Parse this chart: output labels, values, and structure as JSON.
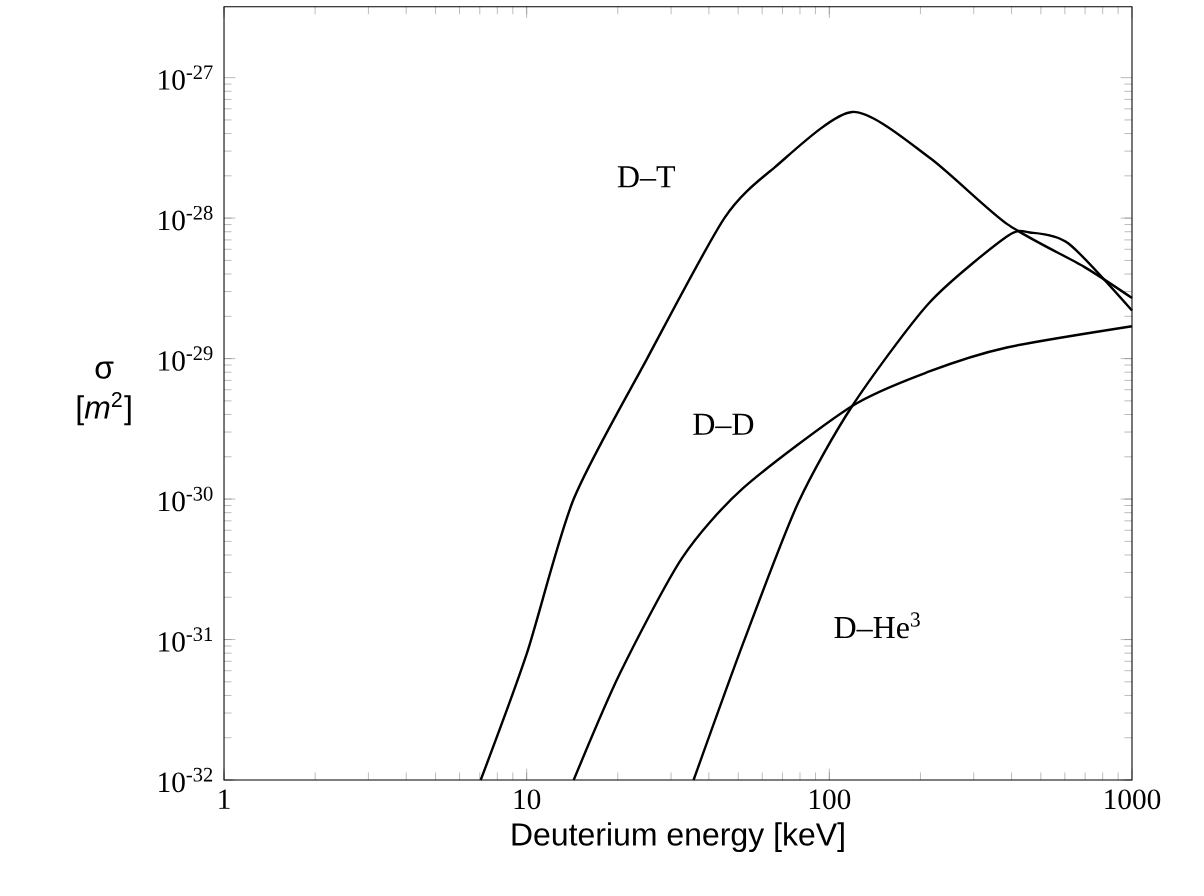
{
  "chart_data": {
    "type": "line",
    "xlabel": "Deuterium energy [keV]",
    "ylabel": "σ [*m*$^{2}$]",
    "log": "xy",
    "marker": "none",
    "line_style": "solid",
    "xlim": [
      1,
      1000
    ],
    "xticks": [
      1,
      10,
      100,
      1000
    ],
    "ylim": [
      1e-32,
      3.2e-27
    ],
    "yticks": [
      {
        "value": 1e-32,
        "label": "10$^{-32}$"
      },
      {
        "value": 1e-31,
        "label": "10$^{-31}$"
      },
      {
        "value": 1e-30,
        "label": "10$^{-30}$"
      },
      {
        "value": 1e-29,
        "label": "10$^{-29}$"
      },
      {
        "value": 1e-28,
        "label": "10$^{-28}$"
      },
      {
        "value": 1e-27,
        "label": "10$^{-27}$"
      }
    ],
    "series": [
      {
        "name": "D–T",
        "color": "#000000",
        "x": [
          7.05,
          10,
          14.3,
          25,
          45,
          66,
          119,
          214,
          386,
          695,
          1000
        ],
        "values": [
          1e-32,
          7.9e-32,
          1e-30,
          1e-29,
          1e-28,
          2.3e-28,
          5.7e-28,
          2.7e-28,
          9.1e-29,
          4.5e-29,
          2.7e-29
        ]
      },
      {
        "name": "D–D",
        "color": "#000000",
        "x": [
          14.3,
          20.3,
          32.6,
          52,
          119,
          214,
          386,
          1000
        ],
        "values": [
          1e-32,
          5.7e-32,
          3.8e-31,
          1.2e-30,
          4.6e-30,
          8.1e-30,
          1.2e-29,
          1.7e-29
        ]
      },
      {
        "name": "D–He$^{3}$",
        "color": "#000000",
        "x": [
          35.6,
          52,
          78.7,
          119,
          214,
          386,
          460,
          617,
          1000
        ],
        "values": [
          1e-32,
          9.5e-32,
          9.3e-31,
          4.6e-30,
          2.5e-29,
          7.4e-29,
          7.9e-29,
          6.6e-29,
          2.2e-29
        ]
      }
    ]
  }
}
